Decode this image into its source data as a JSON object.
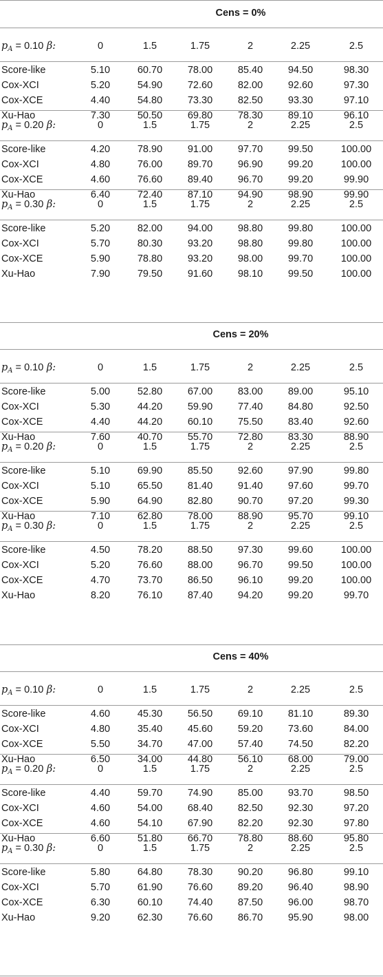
{
  "headers": {
    "column_values": [
      "0",
      "1.5",
      "1.75",
      "2",
      "2.25",
      "2.5"
    ],
    "p_symbol": "p",
    "p_sub": "A",
    "eq": " = ",
    "beta": "β:"
  },
  "sections": [
    {
      "title": "Cens = 0%",
      "groups": [
        {
          "pA": "0.10",
          "rows": [
            {
              "label": "Score-like",
              "values": [
                "5.10",
                "60.70",
                "78.00",
                "85.40",
                "94.50",
                "98.30"
              ]
            },
            {
              "label": "Cox-XCI",
              "values": [
                "5.20",
                "54.90",
                "72.60",
                "82.00",
                "92.60",
                "97.30"
              ]
            },
            {
              "label": "Cox-XCE",
              "values": [
                "4.40",
                "54.80",
                "73.30",
                "82.50",
                "93.30",
                "97.10"
              ]
            },
            {
              "label": "Xu-Hao",
              "values": [
                "7.30",
                "50.50",
                "69.80",
                "78.30",
                "89.10",
                "96.10"
              ]
            }
          ]
        },
        {
          "pA": "0.20",
          "rows": [
            {
              "label": "Score-like",
              "values": [
                "4.20",
                "78.90",
                "91.00",
                "97.70",
                "99.50",
                "100.00"
              ]
            },
            {
              "label": "Cox-XCI",
              "values": [
                "4.80",
                "76.00",
                "89.70",
                "96.90",
                "99.20",
                "100.00"
              ]
            },
            {
              "label": "Cox-XCE",
              "values": [
                "4.60",
                "76.60",
                "89.40",
                "96.70",
                "99.20",
                "99.90"
              ]
            },
            {
              "label": "Xu-Hao",
              "values": [
                "6.40",
                "72.40",
                "87.10",
                "94.90",
                "98.90",
                "99.90"
              ]
            }
          ]
        },
        {
          "pA": "0.30",
          "rows": [
            {
              "label": "Score-like",
              "values": [
                "5.20",
                "82.00",
                "94.00",
                "98.80",
                "99.80",
                "100.00"
              ]
            },
            {
              "label": "Cox-XCI",
              "values": [
                "5.70",
                "80.30",
                "93.20",
                "98.80",
                "99.80",
                "100.00"
              ]
            },
            {
              "label": "Cox-XCE",
              "values": [
                "5.90",
                "78.80",
                "93.20",
                "98.00",
                "99.70",
                "100.00"
              ]
            },
            {
              "label": "Xu-Hao",
              "values": [
                "7.90",
                "79.50",
                "91.60",
                "98.10",
                "99.50",
                "100.00"
              ]
            }
          ]
        }
      ]
    },
    {
      "title": "Cens = 20%",
      "groups": [
        {
          "pA": "0.10",
          "rows": [
            {
              "label": "Score-like",
              "values": [
                "5.00",
                "52.80",
                "67.00",
                "83.00",
                "89.00",
                "95.10"
              ]
            },
            {
              "label": "Cox-XCI",
              "values": [
                "5.30",
                "44.20",
                "59.90",
                "77.40",
                "84.80",
                "92.50"
              ]
            },
            {
              "label": "Cox-XCE",
              "values": [
                "4.40",
                "44.20",
                "60.10",
                "75.50",
                "83.40",
                "92.60"
              ]
            },
            {
              "label": "Xu-Hao",
              "values": [
                "7.60",
                "40.70",
                "55.70",
                "72.80",
                "83.30",
                "88.90"
              ]
            }
          ]
        },
        {
          "pA": "0.20",
          "rows": [
            {
              "label": "Score-like",
              "values": [
                "5.10",
                "69.90",
                "85.50",
                "92.60",
                "97.90",
                "99.80"
              ]
            },
            {
              "label": "Cox-XCI",
              "values": [
                "5.10",
                "65.50",
                "81.40",
                "91.40",
                "97.60",
                "99.70"
              ]
            },
            {
              "label": "Cox-XCE",
              "values": [
                "5.90",
                "64.90",
                "82.80",
                "90.70",
                "97.20",
                "99.30"
              ]
            },
            {
              "label": "Xu-Hao",
              "values": [
                "7.10",
                "62.80",
                "78.00",
                "88.90",
                "95.70",
                "99.10"
              ]
            }
          ]
        },
        {
          "pA": "0.30",
          "rows": [
            {
              "label": "Score-like",
              "values": [
                "4.50",
                "78.20",
                "88.50",
                "97.30",
                "99.60",
                "100.00"
              ]
            },
            {
              "label": "Cox-XCI",
              "values": [
                "5.20",
                "76.60",
                "88.00",
                "96.70",
                "99.50",
                "100.00"
              ]
            },
            {
              "label": "Cox-XCE",
              "values": [
                "4.70",
                "73.70",
                "86.50",
                "96.10",
                "99.20",
                "100.00"
              ]
            },
            {
              "label": "Xu-Hao",
              "values": [
                "8.20",
                "76.10",
                "87.40",
                "94.20",
                "99.20",
                "99.70"
              ]
            }
          ]
        }
      ]
    },
    {
      "title": "Cens = 40%",
      "groups": [
        {
          "pA": "0.10",
          "rows": [
            {
              "label": "Score-like",
              "values": [
                "4.60",
                "45.30",
                "56.50",
                "69.10",
                "81.10",
                "89.30"
              ]
            },
            {
              "label": "Cox-XCI",
              "values": [
                "4.80",
                "35.40",
                "45.60",
                "59.20",
                "73.60",
                "84.00"
              ]
            },
            {
              "label": "Cox-XCE",
              "values": [
                "5.50",
                "34.70",
                "47.00",
                "57.40",
                "74.50",
                "82.20"
              ]
            },
            {
              "label": "Xu-Hao",
              "values": [
                "6.50",
                "34.00",
                "44.80",
                "56.10",
                "68.00",
                "79.00"
              ]
            }
          ]
        },
        {
          "pA": "0.20",
          "rows": [
            {
              "label": "Score-like",
              "values": [
                "4.40",
                "59.70",
                "74.90",
                "85.00",
                "93.70",
                "98.50"
              ]
            },
            {
              "label": "Cox-XCI",
              "values": [
                "4.60",
                "54.00",
                "68.40",
                "82.50",
                "92.30",
                "97.20"
              ]
            },
            {
              "label": "Cox-XCE",
              "values": [
                "4.60",
                "54.10",
                "67.90",
                "82.20",
                "92.30",
                "97.80"
              ]
            },
            {
              "label": "Xu-Hao",
              "values": [
                "6.60",
                "51.80",
                "66.70",
                "78.80",
                "88.60",
                "95.80"
              ]
            }
          ]
        },
        {
          "pA": "0.30",
          "rows": [
            {
              "label": "Score-like",
              "values": [
                "5.80",
                "64.80",
                "78.30",
                "90.20",
                "96.80",
                "99.10"
              ]
            },
            {
              "label": "Cox-XCI",
              "values": [
                "5.70",
                "61.90",
                "76.60",
                "89.20",
                "96.40",
                "98.90"
              ]
            },
            {
              "label": "Cox-XCE",
              "values": [
                "6.30",
                "60.10",
                "74.40",
                "87.50",
                "96.00",
                "98.70"
              ]
            },
            {
              "label": "Xu-Hao",
              "values": [
                "9.20",
                "62.30",
                "76.60",
                "86.70",
                "95.90",
                "98.00"
              ]
            }
          ]
        }
      ]
    }
  ]
}
